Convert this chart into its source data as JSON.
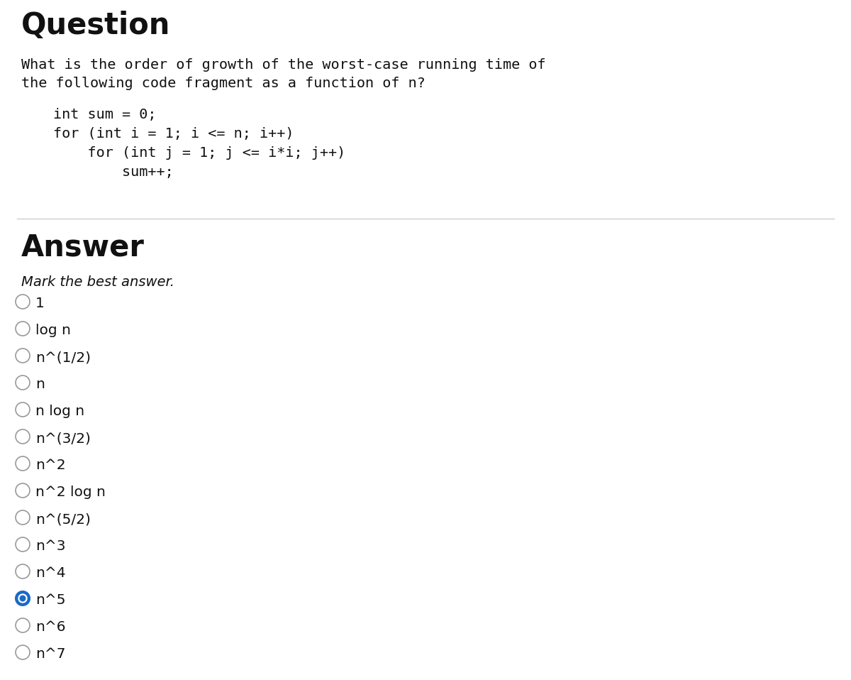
{
  "background_color": "#ffffff",
  "question_title": "Question",
  "question_title_fontsize": 30,
  "question_text_line1": "What is the order of growth of the worst-case running time of",
  "question_text_line2": "the following code fragment as a function of n?",
  "question_text_fontsize": 14.5,
  "code_lines": [
    "int sum = 0;",
    "for (int i = 1; i <= n; i++)",
    "    for (int j = 1; j <= i*i; j++)",
    "        sum++;"
  ],
  "code_fontsize": 14.5,
  "answer_title": "Answer",
  "answer_title_fontsize": 30,
  "answer_subtitle": "Mark the best answer.",
  "answer_subtitle_fontsize": 14,
  "options": [
    "1",
    "log n",
    "n^(1/2)",
    "n",
    "n log n",
    "n^(3/2)",
    "n^2",
    "n^2 log n",
    "n^(5/2)",
    "n^3",
    "n^4",
    "n^5",
    "n^6",
    "n^7"
  ],
  "selected_option_index": 11,
  "selected_color": "#1a6ac7",
  "text_color": "#111111",
  "divider_color": "#cccccc",
  "radio_unsel_edge": "#999999",
  "option_fontsize": 14.5
}
